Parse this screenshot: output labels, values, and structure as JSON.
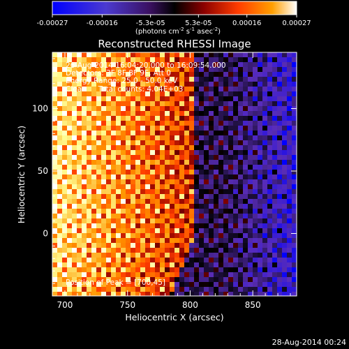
{
  "colorbar": {
    "ticks": [
      "-0.00027",
      "-0.00016",
      "-5.3e-05",
      "5.3e-05",
      "0.00016",
      "0.00027"
    ],
    "tick_values": [
      -0.00027,
      -0.00016,
      -5.3e-05,
      5.3e-05,
      0.00016,
      0.00027
    ],
    "range": [
      -0.00027,
      0.00027
    ],
    "units_parts": [
      "(photons cm",
      "-2",
      " s",
      "-1",
      " asec",
      "-2",
      ")"
    ]
  },
  "chart_data": {
    "type": "heatmap",
    "title": "Reconstructed RHESSI Image",
    "xlabel": "Heliocentric X (arcsec)",
    "ylabel": "Heliocentric Y (arcsec)",
    "xlim": [
      690,
      885
    ],
    "ylim": [
      -50,
      145
    ],
    "x_ticks": [
      700,
      750,
      800,
      850
    ],
    "y_ticks": [
      0,
      50,
      100
    ],
    "peak": [
      700,
      45
    ],
    "colormap": [
      "#0000ff",
      "#5a2db9",
      "#000000",
      "#8b0000",
      "#ff3c00",
      "#ff9600",
      "#ffff96",
      "#ffffff"
    ]
  },
  "annotations": [
    "26-Aug-2014 16:04:20.000 to 16:09:54.000",
    "Detectors: 3F 8F 8F 9F, Att 0",
    "Energy Range: 25.0 - 50.0 keV",
    "Clean     Total counts: 4.04E+03"
  ],
  "peak_text": "Position of Peak = [700,45]",
  "footer_date": "28-Aug-2014 00:24"
}
